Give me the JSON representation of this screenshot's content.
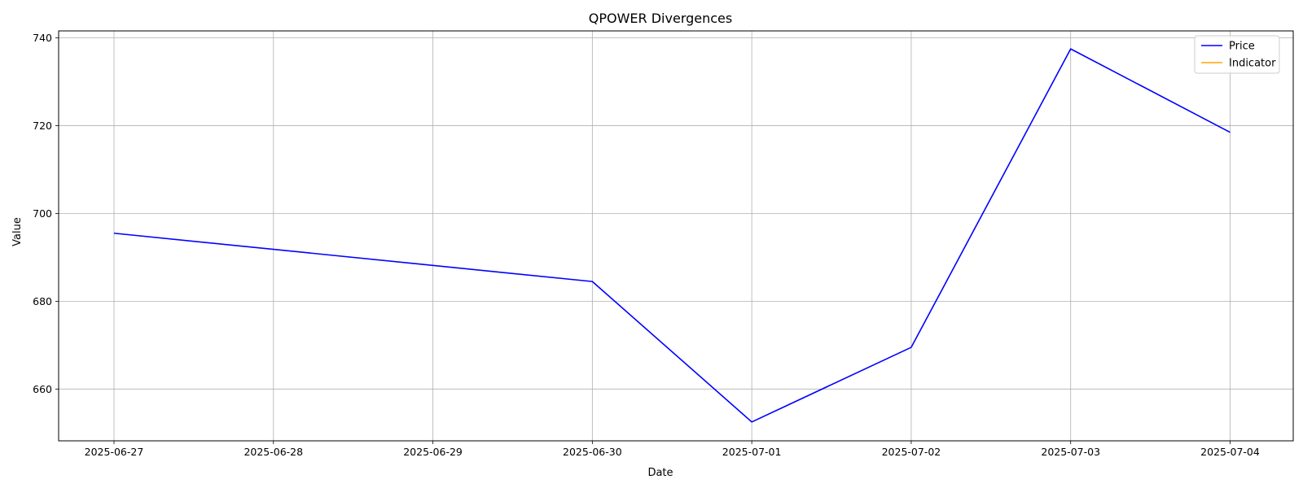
{
  "chart_data": {
    "type": "line",
    "title": "QPOWER Divergences",
    "xlabel": "Date",
    "ylabel": "Value",
    "x": [
      "2025-06-27",
      "2025-06-28",
      "2025-06-29",
      "2025-06-30",
      "2025-07-01",
      "2025-07-02",
      "2025-07-03",
      "2025-07-04"
    ],
    "x_ticks": [
      "2025-06-27",
      "2025-06-28",
      "2025-06-29",
      "2025-06-30",
      "2025-07-01",
      "2025-07-02",
      "2025-07-03",
      "2025-07-04"
    ],
    "y_ticks": [
      660,
      680,
      700,
      720,
      740
    ],
    "ylim": [
      648.2,
      741.6
    ],
    "xlim": [
      "2025-06-26T15:40",
      "2025-07-04T09:30"
    ],
    "grid": true,
    "legend_position": "top-right",
    "series": [
      {
        "name": "Price",
        "color": "#0000ff",
        "points": [
          {
            "x": "2025-06-27",
            "y": 695.5
          },
          {
            "x": "2025-06-30",
            "y": 684.5
          },
          {
            "x": "2025-07-01",
            "y": 652.5
          },
          {
            "x": "2025-07-02",
            "y": 669.5
          },
          {
            "x": "2025-07-03",
            "y": 737.5
          },
          {
            "x": "2025-07-04",
            "y": 718.5
          }
        ]
      },
      {
        "name": "Indicator",
        "color": "#ffa500",
        "points": []
      }
    ]
  }
}
